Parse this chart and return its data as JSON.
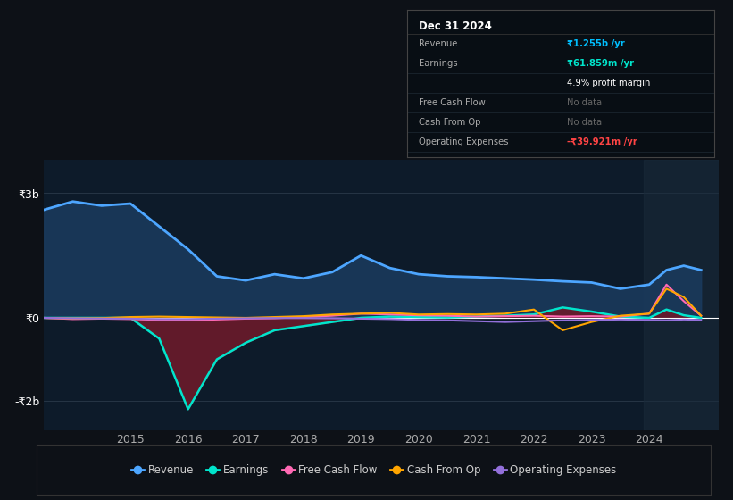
{
  "bg_color": "#0d1117",
  "plot_bg_color": "#0d1b2a",
  "grid_color": "#2a3a4a",
  "zero_line_color": "#ffffff",
  "ytick_labels": [
    "-₹2b",
    "₹0",
    "₹3b"
  ],
  "xlabel_color": "#aaaaaa",
  "ylabel_color": "#ffffff",
  "title_box": {
    "date": "Dec 31 2024",
    "rows": [
      {
        "label": "Revenue",
        "value": "₹1.255b /yr",
        "value_color": "#00bfff"
      },
      {
        "label": "Earnings",
        "value": "₹61.859m /yr",
        "value_color": "#00e5cc"
      },
      {
        "label": "",
        "value": "4.9% profit margin",
        "value_color": "#ffffff"
      },
      {
        "label": "Free Cash Flow",
        "value": "No data",
        "value_color": "#666666"
      },
      {
        "label": "Cash From Op",
        "value": "No data",
        "value_color": "#666666"
      },
      {
        "label": "Operating Expenses",
        "value": "-₹39.921m /yr",
        "value_color": "#ff4444"
      }
    ]
  },
  "years": [
    2013.5,
    2014,
    2014.5,
    2015,
    2015.5,
    2016,
    2016.5,
    2017,
    2017.5,
    2018,
    2018.5,
    2019,
    2019.5,
    2020,
    2020.5,
    2021,
    2021.5,
    2022,
    2022.5,
    2023,
    2023.5,
    2024,
    2024.3,
    2024.6,
    2024.9
  ],
  "revenue": [
    2600000000,
    2800000000,
    2700000000,
    2750000000,
    2200000000,
    1650000000,
    1000000000,
    900000000,
    1050000000,
    950000000,
    1100000000,
    1500000000,
    1200000000,
    1050000000,
    1000000000,
    980000000,
    950000000,
    920000000,
    880000000,
    850000000,
    700000000,
    800000000,
    1150000000,
    1255000000,
    1150000000
  ],
  "earnings": [
    0,
    0,
    0,
    0,
    -500000000,
    -2200000000,
    -1000000000,
    -600000000,
    -300000000,
    -200000000,
    -100000000,
    0,
    30000000,
    20000000,
    10000000,
    30000000,
    50000000,
    80000000,
    250000000,
    150000000,
    30000000,
    0,
    200000000,
    61859000,
    0
  ],
  "free_cash_flow": [
    0,
    -30000000,
    -20000000,
    -30000000,
    -50000000,
    -60000000,
    -40000000,
    -20000000,
    -10000000,
    20000000,
    50000000,
    100000000,
    80000000,
    60000000,
    50000000,
    30000000,
    40000000,
    50000000,
    30000000,
    40000000,
    30000000,
    100000000,
    800000000,
    400000000,
    50000000
  ],
  "cash_from_op": [
    0,
    -10000000,
    -5000000,
    20000000,
    30000000,
    20000000,
    10000000,
    0,
    20000000,
    40000000,
    80000000,
    100000000,
    120000000,
    80000000,
    90000000,
    80000000,
    100000000,
    200000000,
    -300000000,
    -100000000,
    50000000,
    100000000,
    700000000,
    500000000,
    50000000
  ],
  "op_expenses": [
    0,
    -10000000,
    -15000000,
    -20000000,
    -30000000,
    -30000000,
    -20000000,
    -10000000,
    -5000000,
    -5000000,
    -10000000,
    -20000000,
    -30000000,
    -50000000,
    -60000000,
    -80000000,
    -100000000,
    -80000000,
    -60000000,
    -50000000,
    -40000000,
    -50000000,
    -60000000,
    -39921000,
    -50000000
  ],
  "revenue_color": "#4da6ff",
  "revenue_fill_color": "#1a3a5c",
  "earnings_color": "#00e5cc",
  "earnings_fill_color": "#6b1a2a",
  "fcf_color": "#ff69b4",
  "cfo_color": "#ffa500",
  "opex_color": "#9370db",
  "legend": [
    {
      "label": "Revenue",
      "color": "#4da6ff"
    },
    {
      "label": "Earnings",
      "color": "#00e5cc"
    },
    {
      "label": "Free Cash Flow",
      "color": "#ff69b4"
    },
    {
      "label": "Cash From Op",
      "color": "#ffa500"
    },
    {
      "label": "Operating Expenses",
      "color": "#9370db"
    }
  ]
}
